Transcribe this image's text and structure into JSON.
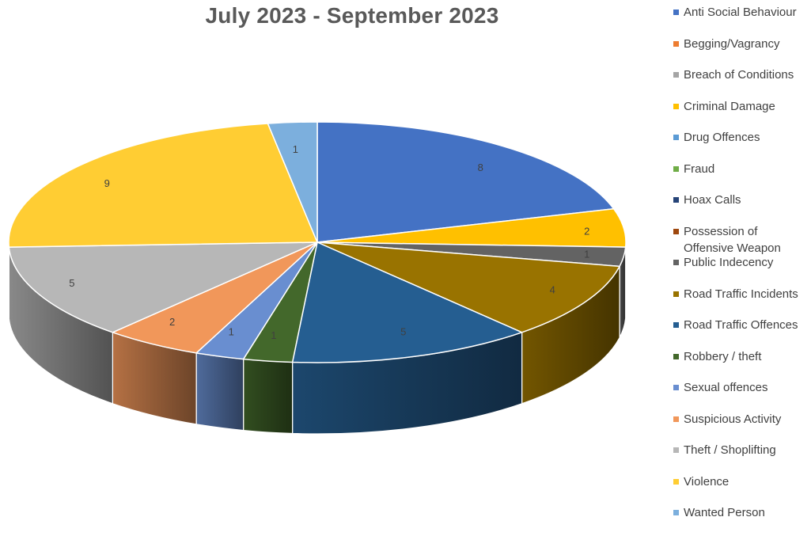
{
  "chart_data": {
    "type": "pie",
    "title": "July 2023 - September 2023",
    "legend_position": "right",
    "categories": [
      "Anti Social Behaviour",
      "Begging/Vagrancy",
      "Breach of Conditions",
      "Criminal Damage",
      "Drug Offences",
      "Fraud",
      "Hoax Calls",
      "Possession of Offensive Weapon",
      "Public Indecency",
      "Road Traffic Incidents",
      "Road Traffic Offences",
      "Robbery / theft",
      "Sexual offences",
      "Suspicious Activity",
      "Theft / Shoplifting",
      "Violence",
      "Wanted Person"
    ],
    "values": [
      8,
      0,
      0,
      2,
      0,
      0,
      0,
      0,
      1,
      4,
      5,
      1,
      1,
      2,
      5,
      9,
      1
    ],
    "colors": [
      "#4472C4",
      "#ED7D31",
      "#A5A5A5",
      "#FFC000",
      "#5B9BD5",
      "#70AD47",
      "#264478",
      "#9E480E",
      "#636363",
      "#997300",
      "#255E91",
      "#43682B",
      "#698ED0",
      "#F1975A",
      "#B7B7B7",
      "#FFCD33",
      "#7CAFDD"
    ]
  }
}
